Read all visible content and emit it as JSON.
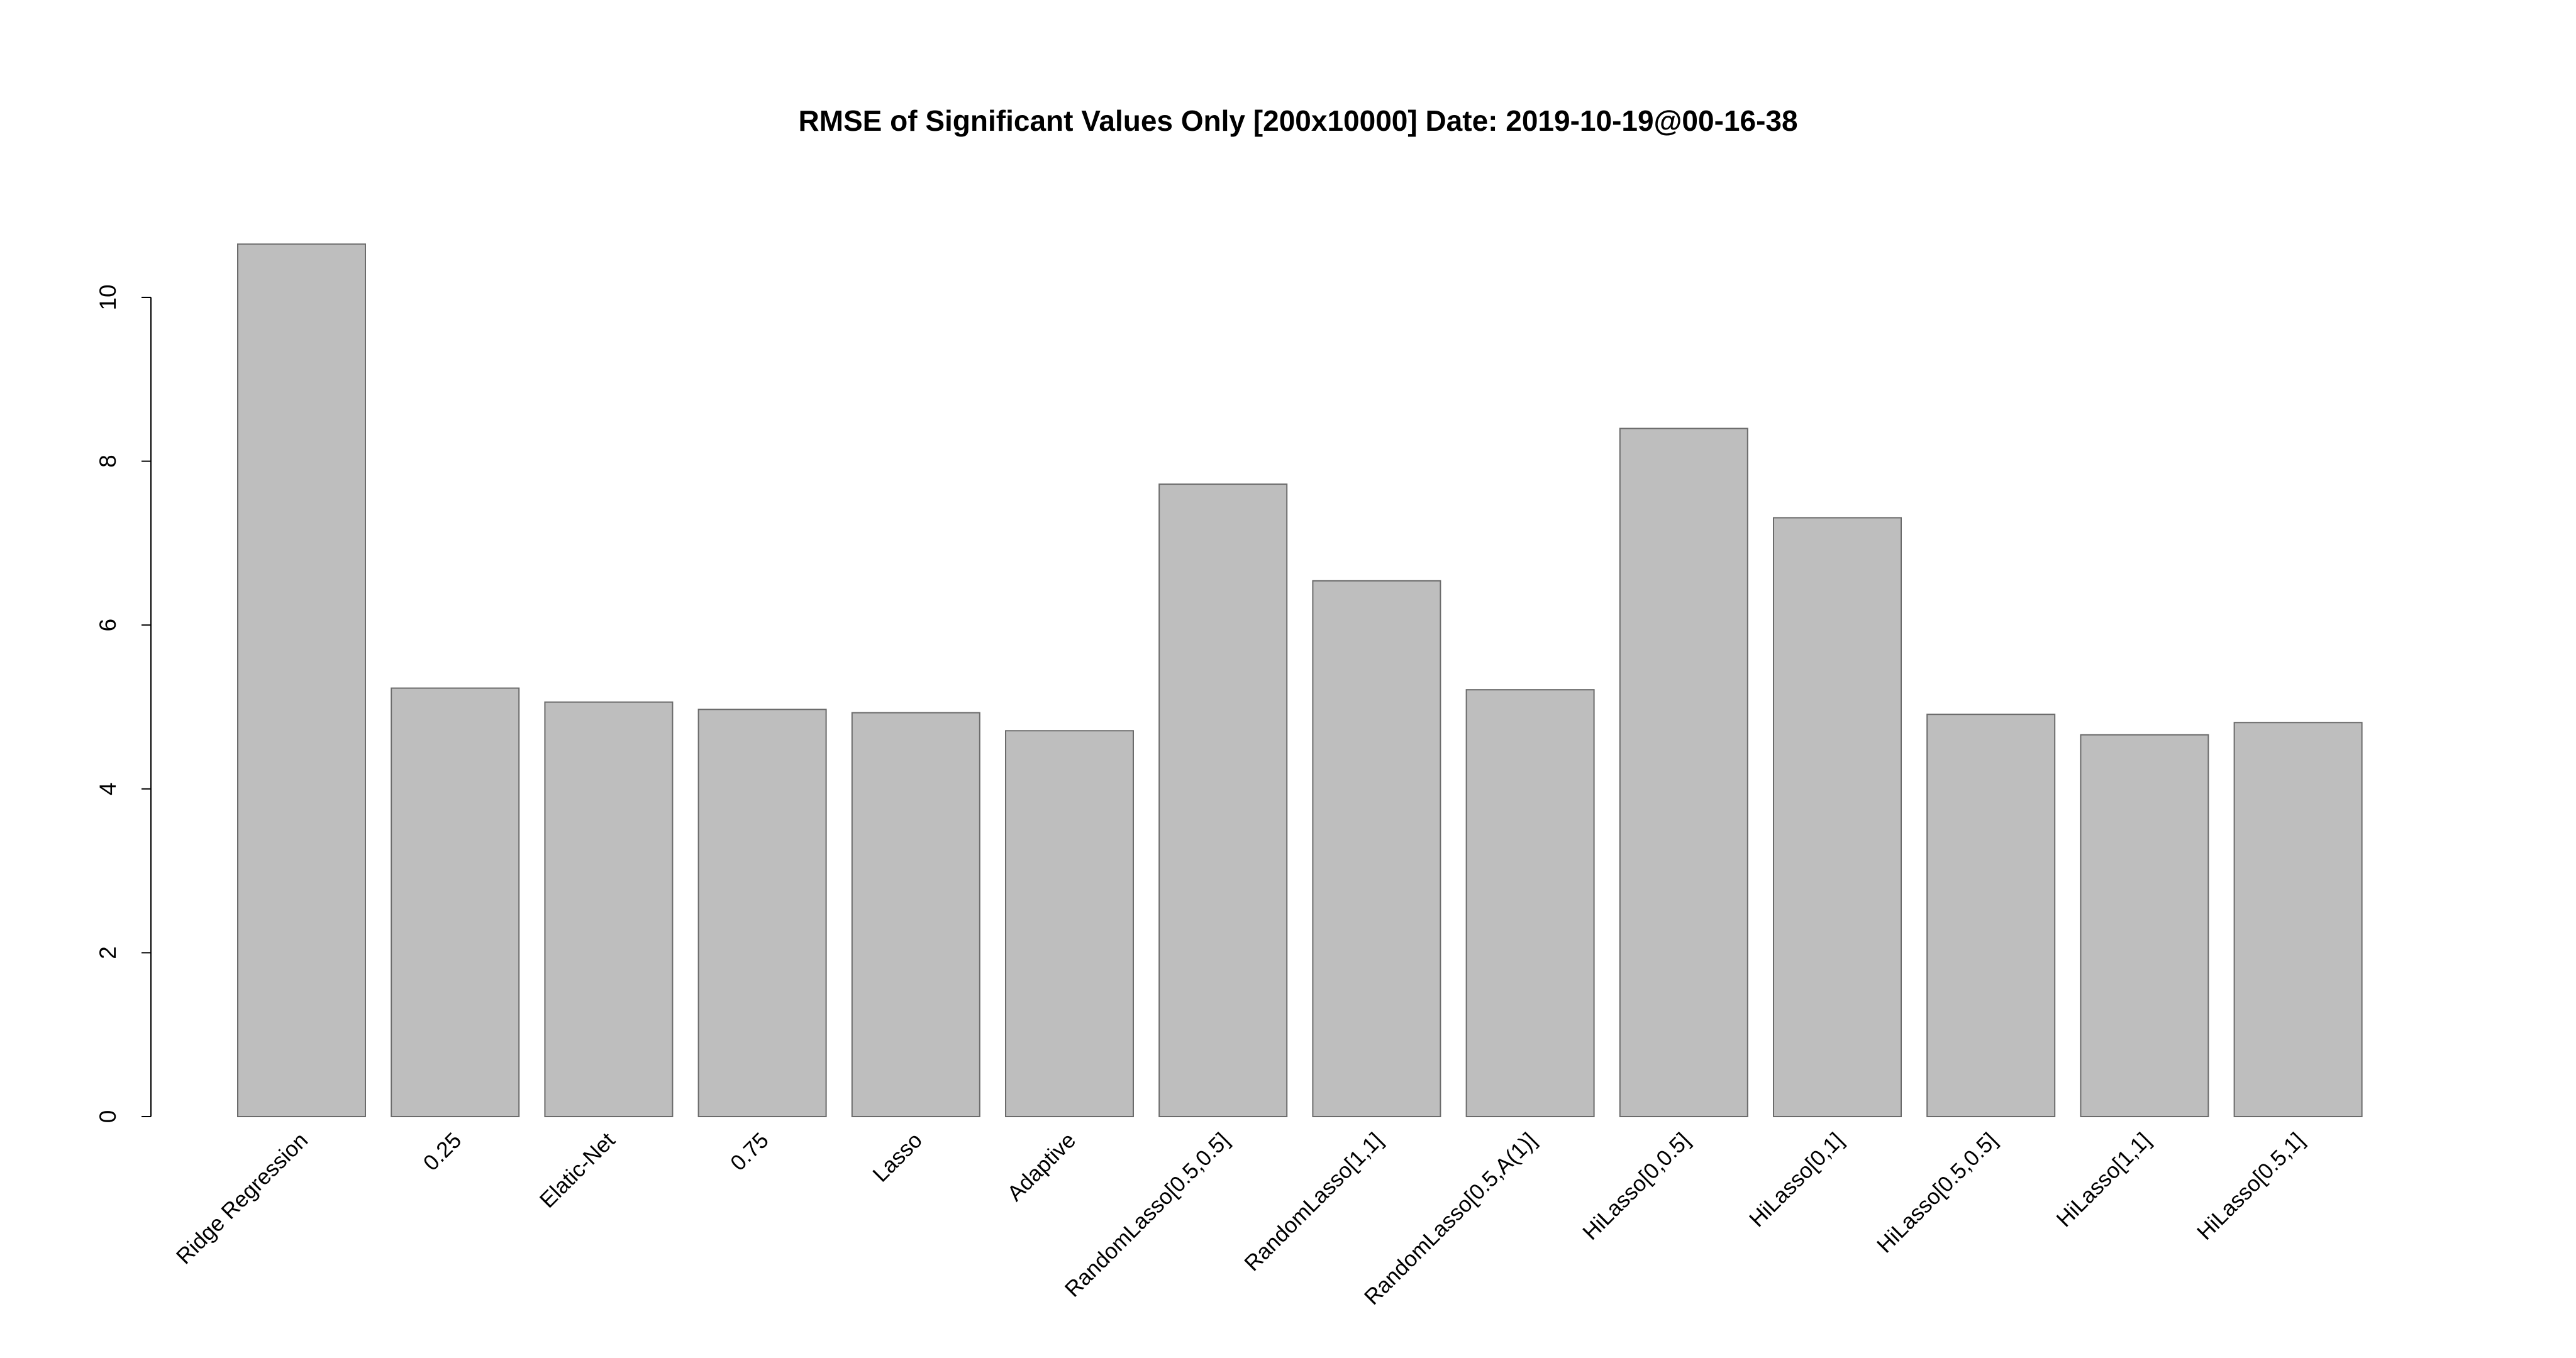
{
  "chart_data": {
    "type": "bar",
    "title": "RMSE of Significant Values Only [200x10000] Date: 2019-10-19@00-16-38",
    "xlabel": "",
    "ylabel": "",
    "categories": [
      "Ridge Regression",
      "0.25",
      "Elatic-Net",
      "0.75",
      "Lasso",
      "Adaptive",
      "RandomLasso[0.5,0.5]",
      "RandomLasso[1,1]",
      "RandomLasso[0.5,A(1)]",
      "HiLasso[0,0.5]",
      "HiLasso[0,1]",
      "HiLasso[0.5,0.5]",
      "HiLasso[1,1]",
      "HiLasso[0.5,1]"
    ],
    "values": [
      10.65,
      5.23,
      5.06,
      4.97,
      4.93,
      4.71,
      7.72,
      6.54,
      5.21,
      8.4,
      7.31,
      4.91,
      4.66,
      4.81
    ],
    "yticks": [
      0,
      2,
      4,
      6,
      8,
      10
    ],
    "ylim": [
      0,
      10.65
    ],
    "grid": false,
    "legend": "none",
    "bar_color": "#bebebe",
    "bar_border_color": "#6b6b6b"
  }
}
